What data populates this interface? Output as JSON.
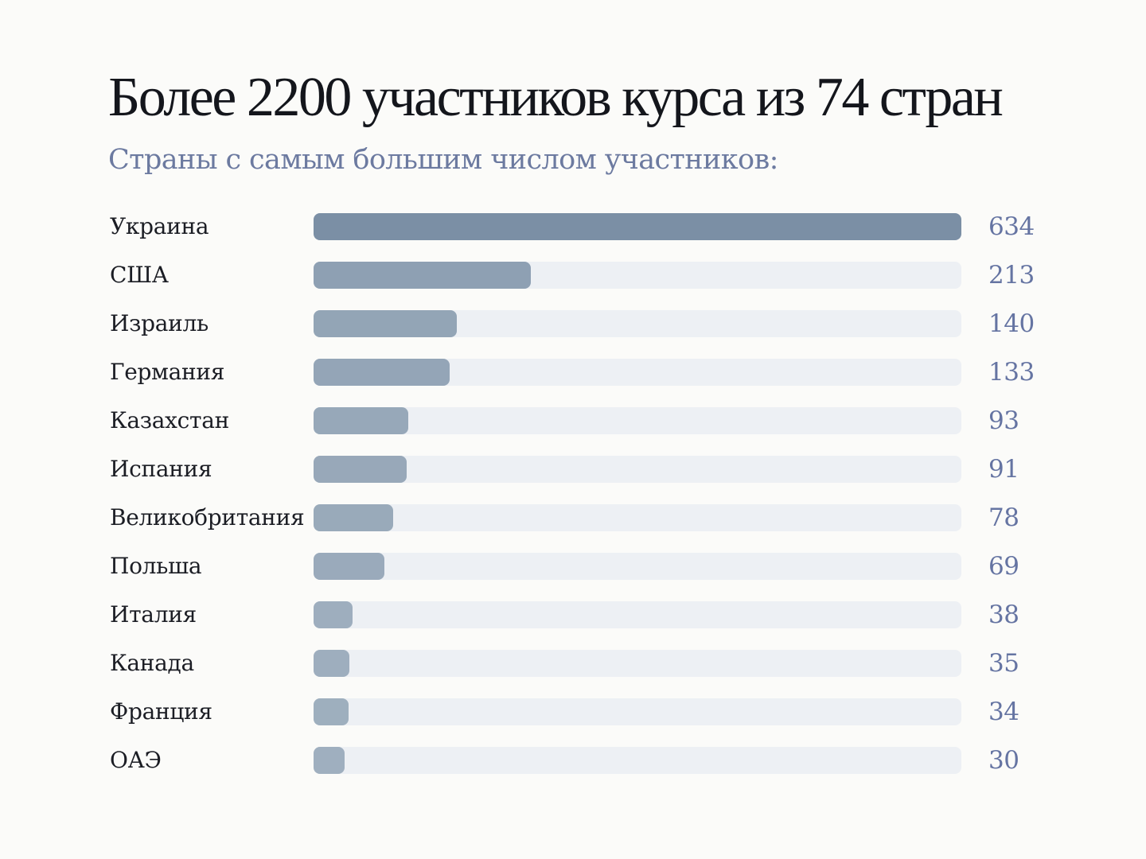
{
  "header": {
    "title": "Более 2200 участников курса из 74 стран",
    "subtitle": "Страны с самым большим числом участников:"
  },
  "chart_data": {
    "type": "bar",
    "orientation": "horizontal",
    "categories": [
      "Украина",
      "США",
      "Израиль",
      "Германия",
      "Казахстан",
      "Испания",
      "Великобритания",
      "Польша",
      "Италия",
      "Канада",
      "Франция",
      "ОАЭ"
    ],
    "values": [
      634,
      213,
      140,
      133,
      93,
      91,
      78,
      69,
      38,
      35,
      34,
      30
    ],
    "xlim": [
      0,
      634
    ],
    "grid": false,
    "legend": "none",
    "colors": {
      "track": "#edf0f4",
      "bar_max": "#7b8fa5",
      "bar_min": "#a9b8c6",
      "value_text": "#6574a2"
    }
  }
}
